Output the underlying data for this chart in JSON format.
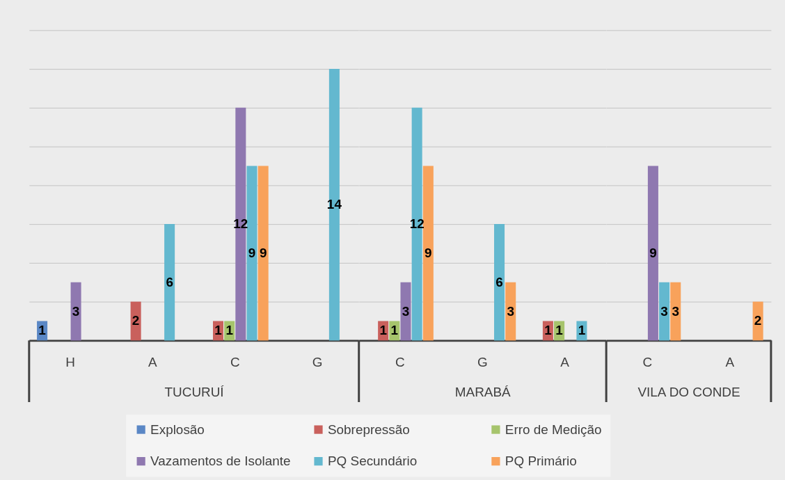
{
  "chart_data": [
    {
      "type": "bar",
      "xlabel": "TUCURUÍ",
      "categories": [
        "H",
        "A",
        "C",
        "G"
      ],
      "series": [
        {
          "name": "Explosão",
          "color": "#5a87c5",
          "values": [
            1,
            null,
            null,
            null
          ]
        },
        {
          "name": "Sobrepressão",
          "color": "#c9605c",
          "values": [
            null,
            2,
            1,
            null
          ]
        },
        {
          "name": "Erro de Medição",
          "color": "#a6c46c",
          "values": [
            null,
            null,
            1,
            null
          ]
        },
        {
          "name": "Vazamentos de Isolante",
          "color": "#8f78b0",
          "values": [
            3,
            null,
            12,
            null
          ]
        },
        {
          "name": "PQ Secundário",
          "color": "#63b8cf",
          "values": [
            null,
            6,
            9,
            14
          ]
        },
        {
          "name": "PQ Primário",
          "color": "#f8a25b",
          "values": [
            null,
            null,
            9,
            null
          ]
        }
      ],
      "ylim": [
        0,
        16
      ],
      "yticks": [
        {
          "value": 0,
          "label": null
        },
        {
          "value": 2,
          "label": null
        },
        {
          "value": 4,
          "label": null
        },
        {
          "value": 6,
          "label": null
        },
        {
          "value": 8,
          "label": null
        },
        {
          "value": 10,
          "label": null
        },
        {
          "value": 12,
          "label": null
        },
        {
          "value": 14,
          "label": null
        },
        {
          "value": 16,
          "label": null
        }
      ],
      "grid": "y",
      "tick_labels": "x",
      "data_labels": true,
      "legend": "bottom"
    },
    {
      "type": "bar",
      "xlabel": "MARABÁ",
      "categories": [
        "C",
        "G",
        "A"
      ],
      "series": [
        {
          "name": "Explosão",
          "color": "#5a87c5",
          "values": [
            null,
            null,
            null
          ]
        },
        {
          "name": "Sobrepressão",
          "color": "#c9605c",
          "values": [
            1,
            null,
            1
          ]
        },
        {
          "name": "Erro de Medição",
          "color": "#a6c46c",
          "values": [
            1,
            null,
            1
          ]
        },
        {
          "name": "Vazamentos de Isolante",
          "color": "#8f78b0",
          "values": [
            3,
            null,
            null
          ]
        },
        {
          "name": "PQ Secundário",
          "color": "#63b8cf",
          "values": [
            12,
            6,
            1
          ]
        },
        {
          "name": "PQ Primário",
          "color": "#f8a25b",
          "values": [
            9,
            3,
            null
          ]
        }
      ],
      "ylim": [
        0,
        16
      ],
      "yticks": [
        {
          "value": 0,
          "label": null
        },
        {
          "value": 2,
          "label": null
        },
        {
          "value": 4,
          "label": null
        },
        {
          "value": 6,
          "label": null
        },
        {
          "value": 8,
          "label": null
        },
        {
          "value": 10,
          "label": null
        },
        {
          "value": 12,
          "label": null
        },
        {
          "value": 14,
          "label": null
        },
        {
          "value": 16,
          "label": null
        }
      ],
      "grid": "y",
      "tick_labels": "x",
      "data_labels": true
    },
    {
      "type": "bar",
      "xlabel": "VILA DO CONDE",
      "categories": [
        "C",
        "A"
      ],
      "series": [
        {
          "name": "Explosão",
          "color": "#5a87c5",
          "values": [
            null,
            null
          ]
        },
        {
          "name": "Sobrepressão",
          "color": "#c9605c",
          "values": [
            null,
            null
          ]
        },
        {
          "name": "Erro de Medição",
          "color": "#a6c46c",
          "values": [
            null,
            null
          ]
        },
        {
          "name": "Vazamentos de Isolante",
          "color": "#8f78b0",
          "values": [
            9,
            null
          ]
        },
        {
          "name": "PQ Secundário",
          "color": "#63b8cf",
          "values": [
            3,
            null
          ]
        },
        {
          "name": "PQ Primário",
          "color": "#f8a25b",
          "values": [
            3,
            2
          ]
        }
      ],
      "ylim": [
        0,
        16
      ],
      "yticks": [
        {
          "value": 0,
          "label": null
        },
        {
          "value": 2,
          "label": null
        },
        {
          "value": 4,
          "label": null
        },
        {
          "value": 6,
          "label": null
        },
        {
          "value": 8,
          "label": null
        },
        {
          "value": 10,
          "label": null
        },
        {
          "value": 12,
          "label": null
        },
        {
          "value": 14,
          "label": null
        },
        {
          "value": 16,
          "label": null
        }
      ],
      "grid": "y",
      "tick_labels": "x",
      "data_labels": true
    }
  ]
}
